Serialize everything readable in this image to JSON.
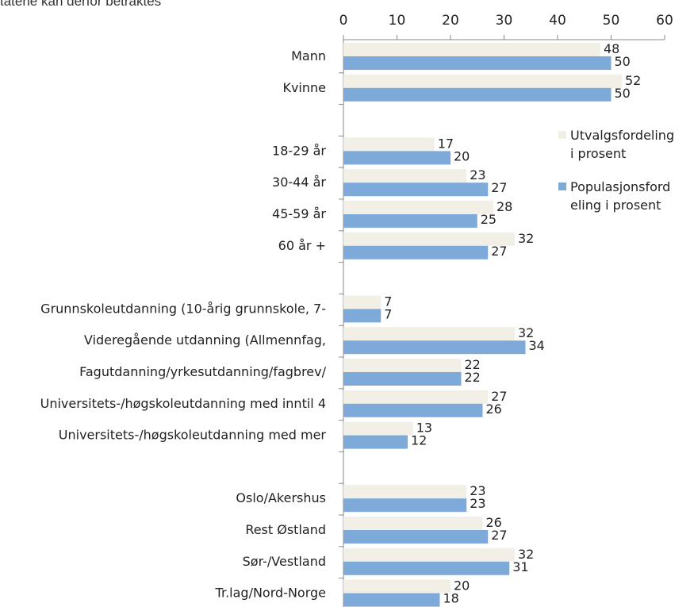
{
  "page": {
    "cut_off_text": "tatene kan derfor betraktes"
  },
  "chart_data": {
    "type": "bar",
    "orientation": "horizontal",
    "xlim": [
      0,
      60
    ],
    "ticks": [
      0,
      10,
      20,
      30,
      40,
      50,
      60
    ],
    "tick_labels": [
      "0",
      "10",
      "20",
      "30",
      "40",
      "50",
      "60"
    ],
    "axis_position": "top",
    "grid": false,
    "legend_position": "right",
    "colors": {
      "utvalg": "#f2efe6",
      "populasjon": "#7eaad9",
      "axis": "#888888"
    },
    "series": [
      {
        "name_lines": [
          "Utvalgsfordeling",
          "i prosent"
        ],
        "values": [
          48,
          52,
          17,
          23,
          28,
          32,
          7,
          32,
          22,
          27,
          13,
          23,
          26,
          32,
          20
        ]
      },
      {
        "name_lines": [
          "Populasjonsford",
          "eling i prosent"
        ],
        "values": [
          50,
          50,
          20,
          27,
          25,
          27,
          7,
          34,
          22,
          26,
          12,
          23,
          27,
          31,
          18
        ]
      }
    ],
    "groups": [
      {
        "categories": [
          "Mann",
          "Kvinne"
        ]
      },
      {
        "categories": [
          "18-29 år",
          "30-44 år",
          "45-59 år",
          "60 år +"
        ]
      },
      {
        "categories": [
          "Grunnskoleutdanning (10-årig grunnskole, 7-",
          "Videregående utdanning (Allmennfag,",
          "Fagutdanning/yrkesutdanning/fagbrev/",
          "Universitets-/høgskoleutdanning med inntil 4",
          "Universitets-/høgskoleutdanning med mer"
        ]
      },
      {
        "categories": [
          "Oslo/Akershus",
          "Rest Østland",
          "Sør-/Vestland",
          "Tr.lag/Nord-Norge"
        ]
      }
    ]
  }
}
